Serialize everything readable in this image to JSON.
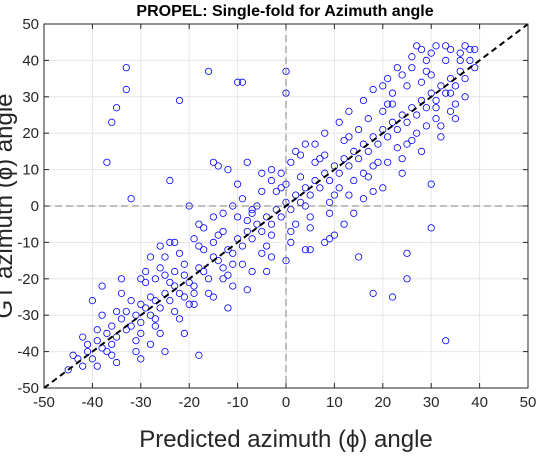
{
  "chart_data": {
    "type": "scatter",
    "title": "PROPEL: Single-fold for Azimuth angle",
    "xlabel": "Predicted azimuth (ϕ) angle",
    "ylabel": "GT azimuth (ϕ) angle",
    "xlim": [
      -50,
      50
    ],
    "ylim": [
      -50,
      50
    ],
    "xticks": [
      "-50",
      "-40",
      "-30",
      "-20",
      "-10",
      "0",
      "10",
      "20",
      "30",
      "40",
      "50"
    ],
    "yticks": [
      "-50",
      "-40",
      "-30",
      "-20",
      "-10",
      "0",
      "10",
      "20",
      "30",
      "40",
      "50"
    ],
    "grid": true,
    "marker_color": "#0000ff",
    "reference_lines": {
      "diagonal": "y = x",
      "horizontal_at": 0,
      "vertical_at": 0
    },
    "series": [
      {
        "points": [
          [
            -45,
            -45
          ],
          [
            -43,
            -42
          ],
          [
            -42,
            -44
          ],
          [
            -41,
            -40
          ],
          [
            -40,
            -42
          ],
          [
            -39,
            -37
          ],
          [
            -38,
            -39
          ],
          [
            -37,
            -35
          ],
          [
            -36,
            -38
          ],
          [
            -36,
            -33
          ],
          [
            -35,
            -36
          ],
          [
            -34,
            -31
          ],
          [
            -33,
            -34
          ],
          [
            -33,
            -29
          ],
          [
            -32,
            -33
          ],
          [
            -31,
            -30
          ],
          [
            -30,
            -32
          ],
          [
            -30,
            -27
          ],
          [
            -29,
            -28
          ],
          [
            -28,
            -30
          ],
          [
            -28,
            -25
          ],
          [
            -27,
            -26
          ],
          [
            -26,
            -28
          ],
          [
            -25,
            -24
          ],
          [
            -24,
            -26
          ],
          [
            -24,
            -21
          ],
          [
            -23,
            -22
          ],
          [
            -22,
            -24
          ],
          [
            -21,
            -19
          ],
          [
            -20,
            -21
          ],
          [
            -19,
            -22
          ],
          [
            -18,
            -17
          ],
          [
            -17,
            -18
          ],
          [
            -16,
            -20
          ],
          [
            -15,
            -14
          ],
          [
            -14,
            -15
          ],
          [
            -13,
            -17
          ],
          [
            -12,
            -12
          ],
          [
            -11,
            -13
          ],
          [
            -10,
            -9
          ],
          [
            -9,
            -11
          ],
          [
            -8,
            -7
          ],
          [
            -7,
            -9
          ],
          [
            -6,
            -5
          ],
          [
            -5,
            -7
          ],
          [
            -4,
            -3
          ],
          [
            -3,
            -5
          ],
          [
            -2,
            -1
          ],
          [
            -1,
            -3
          ],
          [
            0,
            1
          ],
          [
            1,
            -1
          ],
          [
            2,
            3
          ],
          [
            3,
            1
          ],
          [
            4,
            5
          ],
          [
            5,
            3
          ],
          [
            6,
            7
          ],
          [
            7,
            5
          ],
          [
            8,
            9
          ],
          [
            9,
            7
          ],
          [
            10,
            11
          ],
          [
            11,
            9
          ],
          [
            12,
            13
          ],
          [
            13,
            11
          ],
          [
            14,
            15
          ],
          [
            15,
            13
          ],
          [
            16,
            17
          ],
          [
            17,
            15
          ],
          [
            18,
            19
          ],
          [
            19,
            17
          ],
          [
            20,
            21
          ],
          [
            21,
            19
          ],
          [
            22,
            23
          ],
          [
            23,
            21
          ],
          [
            24,
            25
          ],
          [
            25,
            23
          ],
          [
            26,
            27
          ],
          [
            27,
            25
          ],
          [
            28,
            29
          ],
          [
            29,
            27
          ],
          [
            30,
            31
          ],
          [
            31,
            29
          ],
          [
            32,
            33
          ],
          [
            33,
            31
          ],
          [
            34,
            35
          ],
          [
            35,
            33
          ],
          [
            36,
            37
          ],
          [
            37,
            35
          ],
          [
            38,
            40
          ],
          [
            39,
            38
          ],
          [
            37,
            44
          ],
          [
            -38,
            -30
          ],
          [
            -36,
            -41
          ],
          [
            -34,
            -24
          ],
          [
            -31,
            -37
          ],
          [
            -29,
            -21
          ],
          [
            -27,
            -33
          ],
          [
            -26,
            -17
          ],
          [
            -23,
            -29
          ],
          [
            -22,
            -13
          ],
          [
            -20,
            -27
          ],
          [
            -18,
            -11
          ],
          [
            -16,
            -24
          ],
          [
            -14,
            -8
          ],
          [
            -12,
            -19
          ],
          [
            -10,
            -3
          ],
          [
            -9,
            -16
          ],
          [
            -6,
            0
          ],
          [
            -4,
            -11
          ],
          [
            -2,
            4
          ],
          [
            1,
            -7
          ],
          [
            3,
            8
          ],
          [
            5,
            -3
          ],
          [
            8,
            14
          ],
          [
            10,
            3
          ],
          [
            12,
            18
          ],
          [
            14,
            7
          ],
          [
            17,
            24
          ],
          [
            19,
            12
          ],
          [
            21,
            28
          ],
          [
            23,
            16
          ],
          [
            25,
            33
          ],
          [
            27,
            20
          ],
          [
            29,
            37
          ],
          [
            31,
            24
          ],
          [
            33,
            40
          ],
          [
            35,
            28
          ],
          [
            30,
            42
          ],
          [
            -44,
            -41
          ],
          [
            -39,
            -34
          ],
          [
            -35,
            -29
          ],
          [
            -30,
            -35
          ],
          [
            -25,
            -19
          ],
          [
            -21,
            -25
          ],
          [
            -17,
            -12
          ],
          [
            -13,
            -20
          ],
          [
            -8,
            -4
          ],
          [
            -5,
            -13
          ],
          [
            -1,
            5
          ],
          [
            2,
            -5
          ],
          [
            6,
            12
          ],
          [
            9,
            1
          ],
          [
            13,
            19
          ],
          [
            16,
            9
          ],
          [
            20,
            26
          ],
          [
            24,
            13
          ],
          [
            28,
            34
          ],
          [
            32,
            22
          ],
          [
            36,
            40
          ],
          [
            26,
            38
          ],
          [
            22,
            31
          ],
          [
            -41,
            -38
          ],
          [
            -37,
            -40
          ],
          [
            -32,
            -26
          ],
          [
            -27,
            -31
          ],
          [
            -23,
            -18
          ],
          [
            -19,
            -24
          ],
          [
            -15,
            -10
          ],
          [
            -11,
            -16
          ],
          [
            -7,
            -2
          ],
          [
            -3,
            -8
          ],
          [
            0,
            6
          ],
          [
            4,
            0
          ],
          [
            7,
            13
          ],
          [
            11,
            5
          ],
          [
            15,
            21
          ],
          [
            18,
            11
          ],
          [
            22,
            28
          ],
          [
            26,
            18
          ],
          [
            29,
            40
          ],
          [
            34,
            26
          ],
          [
            38,
            43
          ],
          [
            24,
            36
          ],
          [
            20,
            33
          ],
          [
            -33,
            38
          ],
          [
            -35,
            27
          ],
          [
            -36,
            23
          ],
          [
            -33,
            32
          ],
          [
            -37,
            12
          ],
          [
            -32,
            2
          ],
          [
            -24,
            7
          ],
          [
            -22,
            29
          ],
          [
            -20,
            0
          ],
          [
            -16,
            37
          ],
          [
            -15,
            12
          ],
          [
            -10,
            34
          ],
          [
            -9,
            34
          ],
          [
            -8,
            12
          ],
          [
            -12,
            10
          ],
          [
            -14,
            11
          ],
          [
            0,
            37
          ],
          [
            0,
            31
          ],
          [
            2,
            15
          ],
          [
            4,
            17
          ],
          [
            15,
            -14
          ],
          [
            18,
            -24
          ],
          [
            22,
            -25
          ],
          [
            25,
            -13
          ],
          [
            30,
            -6
          ],
          [
            25,
            -20
          ],
          [
            33,
            -37
          ],
          [
            30,
            6
          ],
          [
            30,
            36
          ],
          [
            -26,
            -11
          ],
          [
            -28,
            -14
          ],
          [
            -30,
            -20
          ],
          [
            -24,
            -10
          ],
          [
            -18,
            -5
          ],
          [
            -13,
            -2
          ],
          [
            -10,
            6
          ],
          [
            -5,
            9
          ],
          [
            -3,
            10
          ],
          [
            5,
            -12
          ],
          [
            8,
            -10
          ],
          [
            10,
            -8
          ],
          [
            12,
            -5
          ],
          [
            16,
            2
          ],
          [
            18,
            4
          ],
          [
            -40,
            -26
          ],
          [
            -38,
            -22
          ],
          [
            -34,
            -20
          ],
          [
            -30,
            -42
          ],
          [
            -25,
            -40
          ],
          [
            -21,
            -35
          ],
          [
            -18,
            -41
          ],
          [
            -12,
            -28
          ],
          [
            -8,
            -23
          ],
          [
            -4,
            -18
          ],
          [
            0,
            -15
          ],
          [
            4,
            -12
          ],
          [
            9,
            -9
          ],
          [
            14,
            -2
          ],
          [
            20,
            5
          ],
          [
            24,
            9
          ],
          [
            28,
            15
          ],
          [
            32,
            19
          ],
          [
            35,
            24
          ],
          [
            37,
            30
          ],
          [
            33,
            44
          ],
          [
            27,
            44
          ],
          [
            -42,
            -36
          ],
          [
            -39,
            -44
          ],
          [
            -35,
            -43
          ],
          [
            -31,
            -40
          ],
          [
            -28,
            -38
          ],
          [
            -26,
            -35
          ],
          [
            -22,
            -31
          ],
          [
            -19,
            -27
          ],
          [
            -15,
            -25
          ],
          [
            -11,
            -22
          ],
          [
            -7,
            -18
          ],
          [
            -3,
            -14
          ],
          [
            1,
            -10
          ],
          [
            5,
            -6
          ],
          [
            9,
            -2
          ],
          [
            13,
            3
          ],
          [
            17,
            8
          ],
          [
            21,
            12
          ],
          [
            25,
            17
          ],
          [
            29,
            22
          ],
          [
            31,
            27
          ],
          [
            34,
            31
          ],
          [
            -29,
            -18
          ],
          [
            -27,
            -20
          ],
          [
            -25,
            -14
          ],
          [
            -23,
            -10
          ],
          [
            -21,
            -16
          ],
          [
            -19,
            -9
          ],
          [
            -17,
            -6
          ],
          [
            -15,
            -3
          ],
          [
            -13,
            -7
          ],
          [
            -11,
            0
          ],
          [
            -9,
            2
          ],
          [
            -7,
            -1
          ],
          [
            -5,
            4
          ],
          [
            -3,
            7
          ],
          [
            -1,
            9
          ],
          [
            1,
            12
          ],
          [
            3,
            14
          ],
          [
            6,
            17
          ],
          [
            8,
            20
          ],
          [
            11,
            23
          ],
          [
            13,
            26
          ],
          [
            16,
            29
          ],
          [
            18,
            32
          ],
          [
            21,
            35
          ],
          [
            23,
            38
          ],
          [
            26,
            41
          ],
          [
            28,
            43
          ],
          [
            31,
            44
          ],
          [
            34,
            43
          ],
          [
            36,
            42
          ],
          [
            39,
            43
          ]
        ]
      }
    ]
  }
}
